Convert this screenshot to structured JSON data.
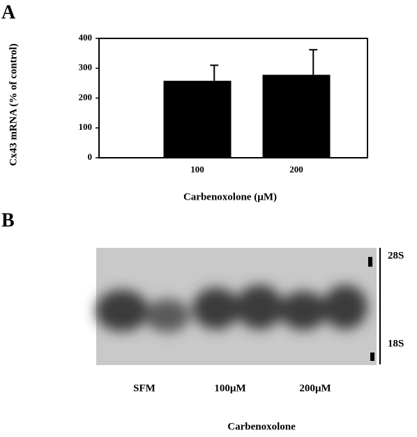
{
  "chart_data": {
    "type": "bar",
    "panel_label": "A",
    "categories": [
      "100",
      "200"
    ],
    "values": [
      258,
      278
    ],
    "errors": [
      52,
      84
    ],
    "ylabel": "Cx43 mRNA (% of control)",
    "xlabel": "Carbenoxolone (µM)",
    "ylim": [
      0,
      400
    ],
    "yticks": [
      0,
      100,
      200,
      300,
      400
    ],
    "color": "#000000"
  },
  "blot": {
    "panel_label": "B",
    "lanes": [
      "SFM",
      "100µM",
      "200µM"
    ],
    "xlabel": "Carbenoxolone",
    "markers": [
      "28S",
      "18S"
    ]
  }
}
